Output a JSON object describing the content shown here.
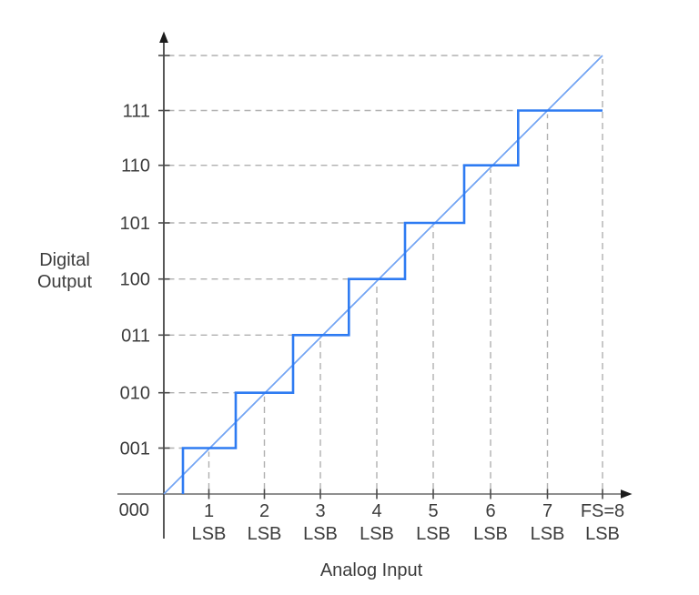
{
  "figure": {
    "background": "#ffffff",
    "y_axis_title": {
      "line1": "Digital",
      "line2": "Output"
    },
    "x_axis_title": "Analog Input"
  },
  "colors": {
    "staircase": "#2e7bf2",
    "ideal_line": "#71a3f3",
    "grid_dashed": "#b0b0b0",
    "x_axis": "#6a6a6a",
    "y_axis": "#3a3a3a",
    "arrow": "#1c1c1c",
    "tick": "#4a4a4a",
    "text": "#3c3c3c"
  },
  "chart_data": {
    "type": "line",
    "subtype": "ideal-3bit-adc-transfer-staircase",
    "title": "",
    "x_axis": {
      "label": "Analog Input",
      "unit": "LSB",
      "range": [
        0,
        8
      ],
      "tick_values": [
        1,
        2,
        3,
        4,
        5,
        6,
        7,
        8
      ],
      "tick_labels_top": [
        "1",
        "2",
        "3",
        "4",
        "5",
        "6",
        "7",
        "FS=8"
      ],
      "tick_labels_bottom": [
        "LSB",
        "LSB",
        "LSB",
        "LSB",
        "LSB",
        "LSB",
        "LSB",
        "LSB"
      ],
      "full_scale": {
        "label": "FS=8",
        "value_lsb": 8
      }
    },
    "y_axis": {
      "label": "Digital Output",
      "code_bits": 3,
      "range_levels": [
        0,
        8
      ],
      "tick_levels": [
        0,
        1,
        2,
        3,
        4,
        5,
        6,
        7
      ],
      "tick_labels": [
        "000",
        "001",
        "010",
        "011",
        "100",
        "101",
        "110",
        "111"
      ],
      "zero_code_label": "000",
      "unlabeled_gridline_level": 8
    },
    "series": [
      {
        "name": "quantized-output-staircase",
        "type": "step",
        "color_key": "staircase",
        "transition_inputs_lsb": [
          0.5,
          1.5,
          2.5,
          3.5,
          4.5,
          5.5,
          6.5
        ],
        "output_codes": [
          1,
          2,
          3,
          4,
          5,
          6,
          7
        ],
        "saturates_at_code": 7,
        "end_input_lsb": 8
      },
      {
        "name": "ideal-transfer-line",
        "type": "line",
        "color_key": "ideal_line",
        "points_lsb": [
          [
            0,
            0
          ],
          [
            8,
            8
          ]
        ]
      }
    ],
    "gridlines": {
      "style": "dashed",
      "horizontal_levels": [
        1,
        2,
        3,
        4,
        5,
        6,
        7,
        8
      ],
      "horizontal_extent": "from y-axis to the step riser reaching that level (level 8: to FS vertical)",
      "vertical_lsb": [
        1,
        2,
        3,
        4,
        5,
        6,
        7,
        8
      ],
      "vertical_extent": "from x-axis up to the ideal line crossing",
      "legend": "none"
    }
  }
}
